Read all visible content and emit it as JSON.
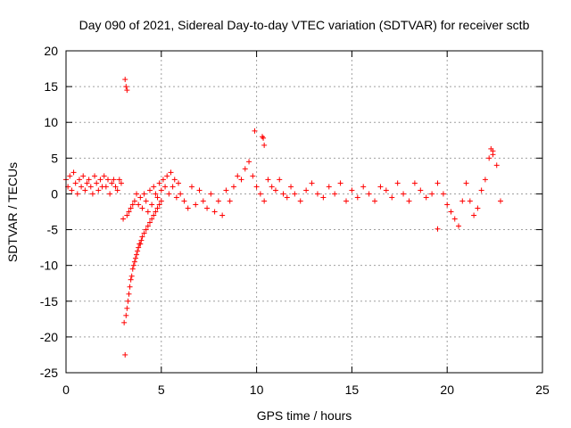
{
  "chart_data": {
    "type": "scatter",
    "title": "Day 090 of 2021, Sidereal Day-to-day VTEC variation (SDTVAR) for receiver sctb",
    "xlabel": "GPS time / hours",
    "ylabel": "SDTVAR / TECUs",
    "xlim": [
      0,
      25
    ],
    "ylim": [
      -25,
      20
    ],
    "xticks": [
      0,
      5,
      10,
      15,
      20,
      25
    ],
    "yticks": [
      -25,
      -20,
      -15,
      -10,
      -5,
      0,
      5,
      10,
      15,
      20
    ],
    "grid": true,
    "marker": "+",
    "colors": {
      "series": "#ff0000",
      "grid": "#a0a0a0",
      "axes": "#000000"
    },
    "series": [
      {
        "name": "SDTVAR",
        "x": [
          0.0,
          0.1,
          0.2,
          0.3,
          0.4,
          0.5,
          0.6,
          0.7,
          0.8,
          0.9,
          1.0,
          1.1,
          1.2,
          1.3,
          1.4,
          1.5,
          1.6,
          1.7,
          1.8,
          1.9,
          2.0,
          2.1,
          2.2,
          2.3,
          2.4,
          2.5,
          2.6,
          2.7,
          2.8,
          2.9,
          3.0,
          3.05,
          3.1,
          3.15,
          3.2,
          3.25,
          3.3,
          3.35,
          3.4,
          3.45,
          3.5,
          3.55,
          3.6,
          3.65,
          3.7,
          3.75,
          3.8,
          3.85,
          3.9,
          3.95,
          4.0,
          4.1,
          4.2,
          4.3,
          4.4,
          4.5,
          4.6,
          4.7,
          4.8,
          4.9,
          5.0,
          3.2,
          3.3,
          3.4,
          3.5,
          3.6,
          3.7,
          3.8,
          3.9,
          4.0,
          4.1,
          4.2,
          4.3,
          4.4,
          4.5,
          4.6,
          4.7,
          4.8,
          4.9,
          5.0,
          5.1,
          5.2,
          5.3,
          5.4,
          5.5,
          5.6,
          5.7,
          5.8,
          5.9,
          6.0,
          6.2,
          6.4,
          6.6,
          6.8,
          7.0,
          7.2,
          7.4,
          7.6,
          7.8,
          8.0,
          8.2,
          8.4,
          8.6,
          8.8,
          9.0,
          9.2,
          9.4,
          9.6,
          9.8,
          10.0,
          10.2,
          10.4,
          10.6,
          10.8,
          11.0,
          11.2,
          11.4,
          11.6,
          11.8,
          12.0,
          12.3,
          12.6,
          12.9,
          13.2,
          13.5,
          13.8,
          14.1,
          14.4,
          14.7,
          15.0,
          15.3,
          15.6,
          15.9,
          16.2,
          16.5,
          16.8,
          17.1,
          17.4,
          17.7,
          18.0,
          18.3,
          18.6,
          18.9,
          19.2,
          19.5,
          19.8,
          20.0,
          20.2,
          20.4,
          20.6,
          20.8,
          21.0,
          21.2,
          21.4,
          21.6,
          21.8,
          22.0,
          22.2,
          22.4,
          22.6,
          22.8,
          3.1,
          3.15,
          3.2,
          9.9,
          10.3,
          10.35,
          10.4,
          19.5,
          22.3,
          22.4
        ],
        "y": [
          2.0,
          1.0,
          2.5,
          0.5,
          3.0,
          1.5,
          0.0,
          2.0,
          1.0,
          2.5,
          0.5,
          1.5,
          2.0,
          1.0,
          0.0,
          2.5,
          1.5,
          0.5,
          2.0,
          1.0,
          2.5,
          1.0,
          2.0,
          0.0,
          1.5,
          2.0,
          1.0,
          0.5,
          2.0,
          1.5,
          -3.5,
          -18.0,
          -22.5,
          -17.0,
          -16.0,
          -15.0,
          -14.0,
          -13.0,
          -12.0,
          -11.5,
          -10.5,
          -10.0,
          -9.5,
          -9.0,
          -8.5,
          -8.0,
          -7.5,
          -7.0,
          -7.0,
          -6.5,
          -6.0,
          -5.5,
          -5.0,
          -4.5,
          -4.0,
          -3.5,
          -3.0,
          -2.5,
          -2.0,
          -1.5,
          -1.0,
          -3.0,
          -2.5,
          -2.0,
          -1.5,
          -1.0,
          0.0,
          -1.5,
          -0.5,
          -2.0,
          0.0,
          -1.0,
          -2.5,
          0.5,
          -1.5,
          1.0,
          0.0,
          -0.5,
          1.5,
          0.5,
          2.0,
          1.0,
          2.5,
          0.0,
          3.0,
          1.0,
          2.0,
          -0.5,
          1.5,
          0.0,
          -1.0,
          -2.0,
          1.0,
          -1.5,
          0.5,
          -1.0,
          -2.0,
          0.0,
          -2.5,
          -1.0,
          -3.0,
          0.5,
          -1.0,
          1.0,
          2.5,
          2.0,
          3.5,
          4.5,
          2.5,
          1.0,
          0.0,
          -1.0,
          2.0,
          1.0,
          0.5,
          2.0,
          0.0,
          -0.5,
          1.0,
          0.0,
          -1.0,
          0.5,
          1.5,
          0.0,
          -0.5,
          1.0,
          0.0,
          1.5,
          -1.0,
          0.5,
          -0.5,
          1.0,
          0.0,
          -1.0,
          1.0,
          0.5,
          -0.5,
          1.5,
          0.0,
          -1.0,
          1.5,
          0.5,
          -0.5,
          0.0,
          1.5,
          0.0,
          -1.5,
          -2.5,
          -3.5,
          -4.5,
          -1.0,
          1.5,
          -1.0,
          -3.0,
          -2.0,
          0.5,
          2.0,
          5.0,
          6.0,
          4.0,
          -1.0,
          16.0,
          15.0,
          14.5,
          8.8,
          8.0,
          7.8,
          6.8,
          -4.9,
          6.3,
          5.5
        ]
      }
    ]
  }
}
